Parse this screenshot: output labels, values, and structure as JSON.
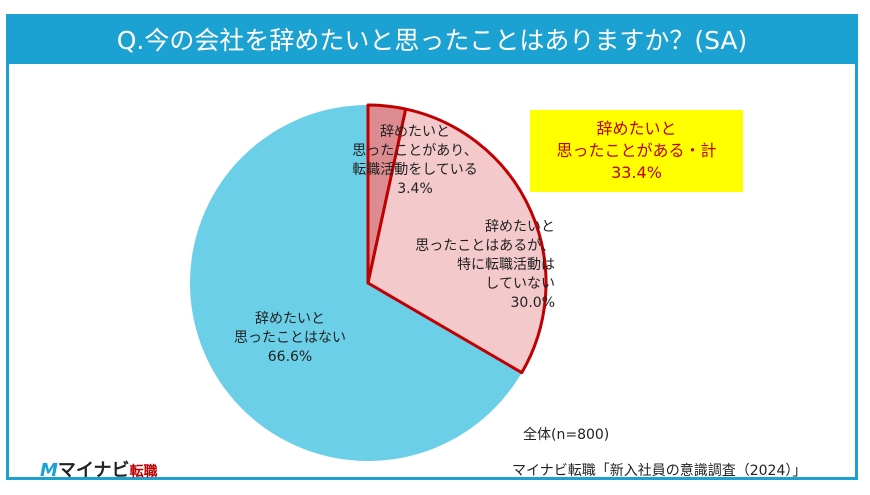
{
  "title": "Q.今の会社を辞めたいと思ったことはありますか？(SA)",
  "chart_data": {
    "type": "pie",
    "title": "Q.今の会社を辞めたいと思ったことはありますか？(SA)",
    "slices": [
      {
        "label": "辞めたいと\n思ったことがあり、\n転職活動をしている",
        "value": 3.4,
        "display": "3.4%",
        "color": "#dc8c90"
      },
      {
        "label": "辞めたいと\n思ったことはあるが、\n特に転職活動は\nしていない",
        "value": 30.0,
        "display": "30.0%",
        "color": "#f4c9cc"
      },
      {
        "label": "辞めたいと\n思ったことはない",
        "value": 66.6,
        "display": "66.6%",
        "color": "#6ccfe8"
      }
    ],
    "highlight_border_color": "#c00000",
    "annotation": {
      "line1": "辞めたいと",
      "line2": "思ったことがある・計",
      "value": "33.4%"
    },
    "sample": "全体(n=800)"
  },
  "source": "マイナビ転職「新入社員の意識調査（2024）」",
  "logo": {
    "mark": "M",
    "name": "マイナビ",
    "sub": "転職"
  }
}
